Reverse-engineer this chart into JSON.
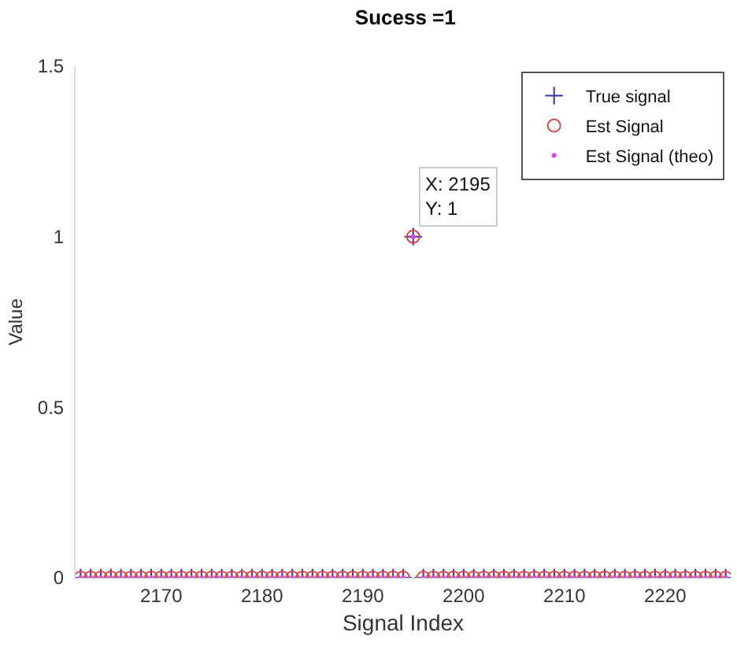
{
  "chart_data": {
    "type": "scatter",
    "title": "Sucess =1",
    "xlabel": "Signal Index",
    "ylabel": "Value",
    "x": [
      2162,
      2163,
      2164,
      2165,
      2166,
      2167,
      2168,
      2169,
      2170,
      2171,
      2172,
      2173,
      2174,
      2175,
      2176,
      2177,
      2178,
      2179,
      2180,
      2181,
      2182,
      2183,
      2184,
      2185,
      2186,
      2187,
      2188,
      2189,
      2190,
      2191,
      2192,
      2193,
      2194,
      2195,
      2196,
      2197,
      2198,
      2199,
      2200,
      2201,
      2202,
      2203,
      2204,
      2205,
      2206,
      2207,
      2208,
      2209,
      2210,
      2211,
      2212,
      2213,
      2214,
      2215,
      2216,
      2217,
      2218,
      2219,
      2220,
      2221,
      2222,
      2223,
      2224,
      2225,
      2226
    ],
    "series": [
      {
        "name": "True signal",
        "color": "#3333aa",
        "marker": "cross",
        "values": [
          0,
          0,
          0,
          0,
          0,
          0,
          0,
          0,
          0,
          0,
          0,
          0,
          0,
          0,
          0,
          0,
          0,
          0,
          0,
          0,
          0,
          0,
          0,
          0,
          0,
          0,
          0,
          0,
          0,
          0,
          0,
          0,
          0,
          1,
          0,
          0,
          0,
          0,
          0,
          0,
          0,
          0,
          0,
          0,
          0,
          0,
          0,
          0,
          0,
          0,
          0,
          0,
          0,
          0,
          0,
          0,
          0,
          0,
          0,
          0,
          0,
          0,
          0,
          0,
          0
        ]
      },
      {
        "name": "Est Signal",
        "color": "#e04040",
        "marker": "circle",
        "values": [
          0,
          0,
          0,
          0,
          0,
          0,
          0,
          0,
          0,
          0,
          0,
          0,
          0,
          0,
          0,
          0,
          0,
          0,
          0,
          0,
          0,
          0,
          0,
          0,
          0,
          0,
          0,
          0,
          0,
          0,
          0,
          0,
          0,
          1,
          0,
          0,
          0,
          0,
          0,
          0,
          0,
          0,
          0,
          0,
          0,
          0,
          0,
          0,
          0,
          0,
          0,
          0,
          0,
          0,
          0,
          0,
          0,
          0,
          0,
          0,
          0,
          0,
          0,
          0,
          0
        ]
      },
      {
        "name": "Est Signal (theo)",
        "color": "#e040e0",
        "marker": "dot",
        "values": [
          0,
          0,
          0,
          0,
          0,
          0,
          0,
          0,
          0,
          0,
          0,
          0,
          0,
          0,
          0,
          0,
          0,
          0,
          0,
          0,
          0,
          0,
          0,
          0,
          0,
          0,
          0,
          0,
          0,
          0,
          0,
          0,
          0,
          1,
          0,
          0,
          0,
          0,
          0,
          0,
          0,
          0,
          0,
          0,
          0,
          0,
          0,
          0,
          0,
          0,
          0,
          0,
          0,
          0,
          0,
          0,
          0,
          0,
          0,
          0,
          0,
          0,
          0,
          0,
          0
        ]
      }
    ],
    "xlim": [
      2161.5,
      2226.5
    ],
    "xticks": [
      2170,
      2180,
      2190,
      2200,
      2210,
      2220
    ],
    "ylim": [
      0,
      1.5
    ],
    "yticks": [
      0,
      0.5,
      1,
      1.5
    ],
    "annotations": [
      {
        "text": "X: 2195\nY: 1",
        "x": 2195,
        "y": 1
      }
    ],
    "grid": false,
    "legend": "top right"
  }
}
